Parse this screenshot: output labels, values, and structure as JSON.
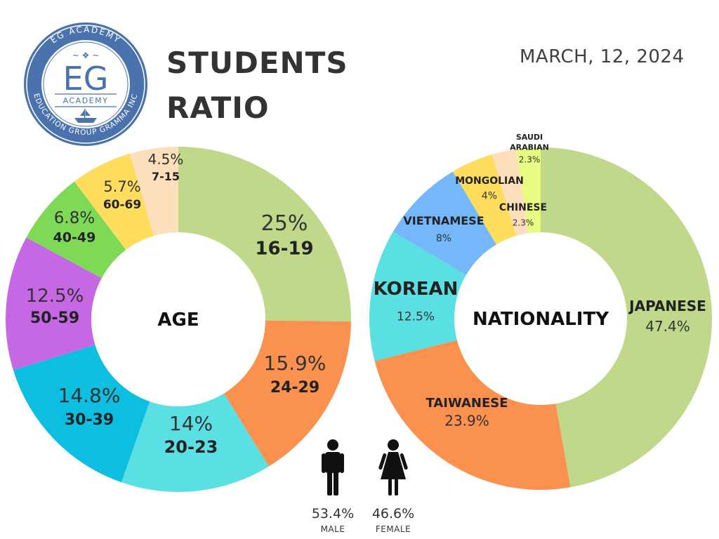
{
  "logo": {
    "ring_top_text": "EG ACADEMY",
    "ring_bottom_text": "EDUCATION GROUP GRAMMA INC",
    "monogram": "EG",
    "subtitle": "ACADEMY",
    "ring_color": "#4a72ad",
    "icon": "ship-icon"
  },
  "header": {
    "title_line1": "STUDENTS",
    "title_line2": "RATIO",
    "date": "MARCH, 12, 2024"
  },
  "chart_data": [
    {
      "type": "pie",
      "center_label": "AGE",
      "slices": [
        {
          "label": "16-19",
          "value": 25,
          "value_label": "25%",
          "color": "#bfd88a"
        },
        {
          "label": "24-29",
          "value": 15.9,
          "value_label": "15.9%",
          "color": "#fa914f"
        },
        {
          "label": "20-23",
          "value": 14,
          "value_label": "14%",
          "color": "#5adfe3"
        },
        {
          "label": "30-39",
          "value": 14.8,
          "value_label": "14.8%",
          "color": "#0cbfe0"
        },
        {
          "label": "50-59",
          "value": 12.5,
          "value_label": "12.5%",
          "color": "#c667e3"
        },
        {
          "label": "40-49",
          "value": 6.8,
          "value_label": "6.8%",
          "color": "#7ed957"
        },
        {
          "label": "60-69",
          "value": 5.7,
          "value_label": "5.7%",
          "color": "#fedc5c"
        },
        {
          "label": "7-15",
          "value": 4.5,
          "value_label": "4.5%",
          "color": "#fde0bb"
        }
      ]
    },
    {
      "type": "pie",
      "center_label": "NATIONALITY",
      "slices": [
        {
          "label": "JAPANESE",
          "value": 47.4,
          "value_label": "47.4%",
          "color": "#bfd88a"
        },
        {
          "label": "TAIWANESE",
          "value": 23.9,
          "value_label": "23.9%",
          "color": "#fa914f"
        },
        {
          "label": "KOREAN",
          "value": 12.5,
          "value_label": "12.5%",
          "color": "#5adfe3"
        },
        {
          "label": "VIETNAMESE",
          "value": 8,
          "value_label": "8%",
          "color": "#74b7fa"
        },
        {
          "label": "MONGOLIAN",
          "value": 4,
          "value_label": "4%",
          "color": "#fedc5c"
        },
        {
          "label": "CHINESE",
          "value": 2.3,
          "value_label": "2.3%",
          "color": "#fde0bb"
        },
        {
          "label": "SAUDI ARABIAN",
          "value": 2.3,
          "value_label": "2.3%",
          "color": "#e8fa82"
        }
      ]
    }
  ],
  "gender": [
    {
      "label": "MALE",
      "value_label": "53.4%",
      "icon": "male-person-icon"
    },
    {
      "label": "FEMALE",
      "value_label": "46.6%",
      "icon": "female-person-icon"
    }
  ]
}
